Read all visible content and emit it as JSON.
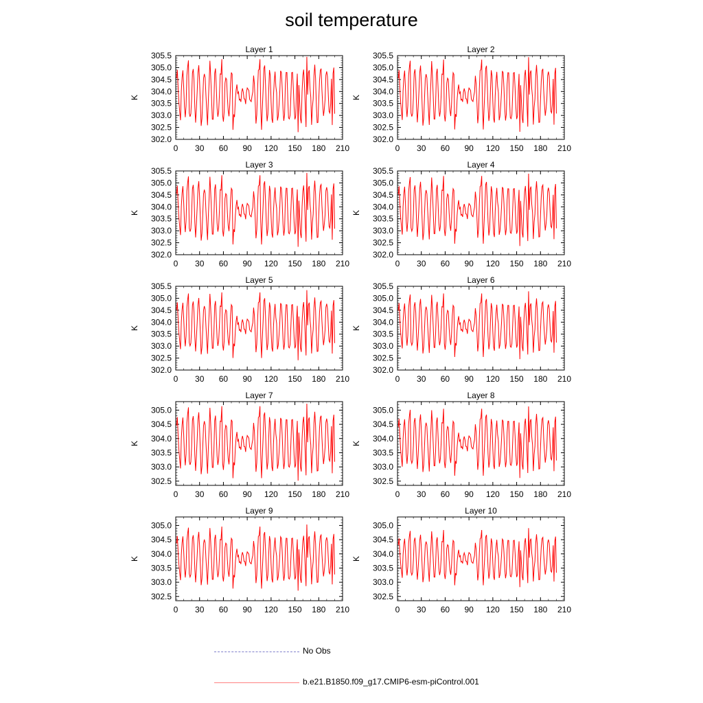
{
  "title": "soil temperature",
  "legend": {
    "obs_label": "No Obs",
    "obs_color": "#7f7fcc",
    "model_label": "b.e21.B1850.f09_g17.CMIP6-esm-piControl.001",
    "model_color": "#ff0000",
    "model_legend_color": "#ff8080"
  },
  "chart_data": [
    {
      "type": "line",
      "title": "Layer 1",
      "ylabel": "K",
      "xlim": [
        0,
        210
      ],
      "ylim": [
        302.0,
        305.5
      ],
      "yticks": [
        "302.0",
        "302.5",
        "303.0",
        "303.5",
        "304.0",
        "304.5",
        "305.0",
        "305.5"
      ],
      "xticks": [
        "0",
        "30",
        "60",
        "90",
        "120",
        "150",
        "180",
        "210"
      ],
      "n_points": 200,
      "offset": 0.0,
      "amp": 1.0
    },
    {
      "type": "line",
      "title": "Layer 2",
      "ylabel": "K",
      "xlim": [
        0,
        210
      ],
      "ylim": [
        302.0,
        305.5
      ],
      "yticks": [
        "302.0",
        "302.5",
        "303.0",
        "303.5",
        "304.0",
        "304.5",
        "305.0",
        "305.5"
      ],
      "xticks": [
        "0",
        "30",
        "60",
        "90",
        "120",
        "150",
        "180",
        "210"
      ],
      "n_points": 200,
      "offset": 0.0,
      "amp": 0.99
    },
    {
      "type": "line",
      "title": "Layer 3",
      "ylabel": "K",
      "xlim": [
        0,
        210
      ],
      "ylim": [
        302.0,
        305.5
      ],
      "yticks": [
        "302.0",
        "302.5",
        "303.0",
        "303.5",
        "304.0",
        "304.5",
        "305.0",
        "305.5"
      ],
      "xticks": [
        "0",
        "30",
        "60",
        "90",
        "120",
        "150",
        "180",
        "210"
      ],
      "n_points": 200,
      "offset": 0.0,
      "amp": 0.98
    },
    {
      "type": "line",
      "title": "Layer 4",
      "ylabel": "K",
      "xlim": [
        0,
        210
      ],
      "ylim": [
        302.0,
        305.5
      ],
      "yticks": [
        "302.0",
        "302.5",
        "303.0",
        "303.5",
        "304.0",
        "304.5",
        "305.0",
        "305.5"
      ],
      "xticks": [
        "0",
        "30",
        "60",
        "90",
        "120",
        "150",
        "180",
        "210"
      ],
      "n_points": 200,
      "offset": 0.0,
      "amp": 0.96
    },
    {
      "type": "line",
      "title": "Layer 5",
      "ylabel": "K",
      "xlim": [
        0,
        210
      ],
      "ylim": [
        302.0,
        305.5
      ],
      "yticks": [
        "302.0",
        "302.5",
        "303.0",
        "303.5",
        "304.0",
        "304.5",
        "305.0",
        "305.5"
      ],
      "xticks": [
        "0",
        "30",
        "60",
        "90",
        "120",
        "150",
        "180",
        "210"
      ],
      "n_points": 200,
      "offset": 0.0,
      "amp": 0.93
    },
    {
      "type": "line",
      "title": "Layer 6",
      "ylabel": "K",
      "xlim": [
        0,
        210
      ],
      "ylim": [
        302.0,
        305.5
      ],
      "yticks": [
        "302.0",
        "302.5",
        "303.0",
        "303.5",
        "304.0",
        "304.5",
        "305.0",
        "305.5"
      ],
      "xticks": [
        "0",
        "30",
        "60",
        "90",
        "120",
        "150",
        "180",
        "210"
      ],
      "n_points": 200,
      "offset": 0.0,
      "amp": 0.9
    },
    {
      "type": "line",
      "title": "Layer 7",
      "ylabel": "K",
      "xlim": [
        0,
        210
      ],
      "ylim": [
        302.35,
        305.3
      ],
      "yticks": [
        "302.5",
        "303.0",
        "303.5",
        "304.0",
        "304.5",
        "305.0"
      ],
      "xticks": [
        "0",
        "30",
        "60",
        "90",
        "120",
        "150",
        "180",
        "210"
      ],
      "n_points": 200,
      "offset": 0.0,
      "amp": 0.86
    },
    {
      "type": "line",
      "title": "Layer 8",
      "ylabel": "K",
      "xlim": [
        0,
        210
      ],
      "ylim": [
        302.35,
        305.3
      ],
      "yticks": [
        "302.5",
        "303.0",
        "303.5",
        "304.0",
        "304.5",
        "305.0"
      ],
      "xticks": [
        "0",
        "30",
        "60",
        "90",
        "120",
        "150",
        "180",
        "210"
      ],
      "n_points": 200,
      "offset": 0.0,
      "amp": 0.8
    },
    {
      "type": "line",
      "title": "Layer 9",
      "ylabel": "K",
      "xlim": [
        0,
        210
      ],
      "ylim": [
        302.35,
        305.3
      ],
      "yticks": [
        "302.5",
        "303.0",
        "303.5",
        "304.0",
        "304.5",
        "305.0"
      ],
      "xticks": [
        "0",
        "30",
        "60",
        "90",
        "120",
        "150",
        "180",
        "210"
      ],
      "n_points": 200,
      "offset": 0.0,
      "amp": 0.74
    },
    {
      "type": "line",
      "title": "Layer 10",
      "ylabel": "K",
      "xlim": [
        0,
        210
      ],
      "ylim": [
        302.35,
        305.3
      ],
      "yticks": [
        "302.5",
        "303.0",
        "303.5",
        "304.0",
        "304.5",
        "305.0"
      ],
      "xticks": [
        "0",
        "30",
        "60",
        "90",
        "120",
        "150",
        "180",
        "210"
      ],
      "n_points": 200,
      "offset": 0.0,
      "amp": 0.66
    }
  ]
}
